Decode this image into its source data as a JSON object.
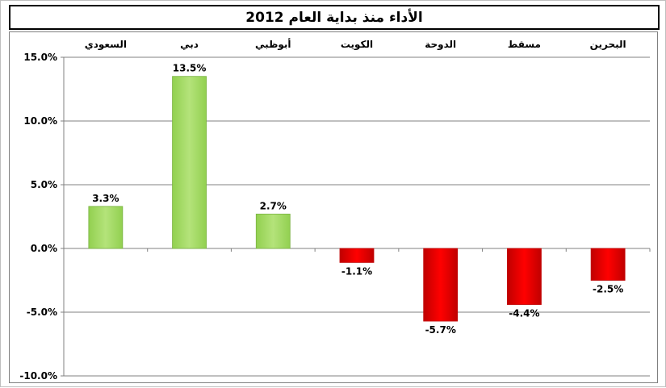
{
  "chart_data": {
    "type": "bar",
    "title": "الأداء منذ بداية العام 2012",
    "categories": [
      "السعودي",
      "دبي",
      "أبوظبي",
      "الكويت",
      "الدوحة",
      "مسقط",
      "البحرين"
    ],
    "values": [
      3.3,
      13.5,
      2.7,
      -1.1,
      -5.7,
      -4.4,
      -2.5
    ],
    "value_labels": [
      "3.3%",
      "13.5%",
      "2.7%",
      "-1.1%",
      "-5.7%",
      "-4.4%",
      "-2.5%"
    ],
    "ylim": [
      -10,
      15
    ],
    "yticks": [
      15,
      10,
      5,
      0,
      -5,
      -10
    ],
    "ytick_labels": [
      "15.0%",
      "10.0%",
      "5.0%",
      "0.0%",
      "-5.0%",
      "-10.0%"
    ],
    "xlabel": "",
    "ylabel": "",
    "grid": true,
    "category_axis_position": "top",
    "colors": {
      "positive": "#92d050",
      "positive_light": "#b4e37a",
      "negative": "#ff0000",
      "negative_dark": "#c00000"
    }
  }
}
